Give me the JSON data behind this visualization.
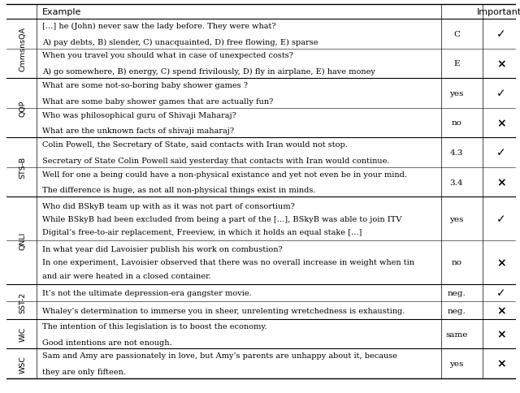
{
  "rows": [
    {
      "dataset": "CmmsnsQA",
      "lines": [
        "[…] he (John) never saw the lady before. They were what?",
        "A) pay debts, B) slender, C) unacquainted, D) free flowing, E) sparse"
      ],
      "label": "C",
      "important": true,
      "row_group": 0,
      "num_text_lines": 2
    },
    {
      "dataset": "CmmsnsQA",
      "lines": [
        "When you travel you should what in case of unexpected costs?",
        "A) go somewhere, B) energy, C) spend frivilously, D) fly in airplane, E) have money"
      ],
      "label": "E",
      "important": false,
      "row_group": 0,
      "num_text_lines": 2
    },
    {
      "dataset": "QQP",
      "lines": [
        "What are some not-so-boring baby shower games ?",
        "What are some baby shower games that are actually fun?"
      ],
      "label": "yes",
      "important": true,
      "row_group": 1,
      "num_text_lines": 2
    },
    {
      "dataset": "QQP",
      "lines": [
        "Who was philosophical guru of Shivaji Maharaj?",
        "What are the unknown facts of shivaji maharaj?"
      ],
      "label": "no",
      "important": false,
      "row_group": 1,
      "num_text_lines": 2
    },
    {
      "dataset": "STS-B",
      "lines": [
        "Colin Powell, the Secretary of State, said contacts with Iran would not stop.",
        "Secretary of State Colin Powell said yesterday that contacts with Iran would continue."
      ],
      "label": "4.3",
      "important": true,
      "row_group": 2,
      "num_text_lines": 2
    },
    {
      "dataset": "STS-B",
      "lines": [
        "Well for one a being could have a non-physical existance and yet not even be in your mind.",
        "The difference is huge, as not all non-physical things exist in minds."
      ],
      "label": "3.4",
      "important": false,
      "row_group": 2,
      "num_text_lines": 2
    },
    {
      "dataset": "QNLI",
      "lines": [
        "Who did BSkyB team up with as it was not part of consortium?",
        "While BSkyB had been excluded from being a part of the […], BSkyB was able to join ITV",
        "Digital’s free-to-air replacement, Freeview, in which it holds an equal stake […]"
      ],
      "label": "yes",
      "important": true,
      "row_group": 3,
      "num_text_lines": 3
    },
    {
      "dataset": "QNLI",
      "lines": [
        "In what year did Lavoisier publish his work on combustion?",
        "In one experiment, Lavoisier observed that there was no overall increase in weight when tin",
        "and air were heated in a closed container."
      ],
      "label": "no",
      "important": false,
      "row_group": 3,
      "num_text_lines": 3
    },
    {
      "dataset": "SST-2",
      "lines": [
        "It’s not the ultimate depression-era gangster movie."
      ],
      "label": "neg.",
      "important": true,
      "row_group": 4,
      "num_text_lines": 1
    },
    {
      "dataset": "SST-2",
      "lines": [
        "Whaley’s determination to immerse you in sheer, unrelenting wretchedness is exhausting."
      ],
      "label": "neg.",
      "important": false,
      "row_group": 4,
      "num_text_lines": 1
    },
    {
      "dataset": "WiC",
      "lines": [
        "The intention of this legislation is to boost the economy.",
        "Good intentions are not enough."
      ],
      "label": "same",
      "important": false,
      "row_group": 5,
      "num_text_lines": 2
    },
    {
      "dataset": "WSC",
      "lines": [
        "Sam and Amy are passionately in love, but Amy’s parents are unhappy about it, because",
        "they are only fifteen."
      ],
      "label": "yes",
      "important": false,
      "row_group": 6,
      "num_text_lines": 2
    }
  ],
  "check_mark": "✓",
  "cross_mark": "×",
  "header_example": "Example",
  "header_important": "Important?",
  "underlines": {
    "0_0": [
      [
        "never",
        0
      ]
    ],
    "0_1": [
      [
        "unexpected",
        0
      ]
    ],
    "1_0": [
      [
        "not-so-boring",
        0
      ]
    ],
    "1_1": [
      [
        "unknown",
        1
      ]
    ],
    "2_0": [
      [
        "not",
        0
      ]
    ],
    "2_1": [
      [
        "non-physical",
        0
      ],
      [
        "not",
        0
      ],
      [
        "non-physical",
        1
      ]
    ],
    "3_0": [
      [
        "not",
        0
      ]
    ],
    "3_1": [
      [
        "no",
        1
      ]
    ],
    "4_0": [
      [
        "not",
        0
      ]
    ],
    "4_1": [
      [
        "unrelenting",
        0
      ]
    ],
    "5_0": [
      [
        "not",
        1
      ]
    ],
    "6_0": [
      [
        "unhappy",
        0
      ]
    ]
  },
  "italic_parts": {
    "5_0_0": [
      "intention"
    ],
    "5_0_1": [
      "intentions"
    ],
    "6_0_0": [
      "Sam and Amy"
    ],
    "6_0_1": [
      "they"
    ]
  },
  "figwidth": 6.4,
  "figheight": 4.85,
  "dpi": 100
}
